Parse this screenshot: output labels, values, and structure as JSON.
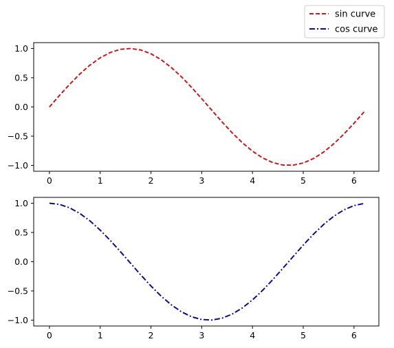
{
  "chart_data": [
    {
      "type": "line",
      "title": "",
      "xlabel": "",
      "ylabel": "",
      "xlim": [
        -0.31,
        6.49
      ],
      "ylim": [
        -1.1,
        1.1
      ],
      "x_ticks": [
        0,
        1,
        2,
        3,
        4,
        5,
        6
      ],
      "x_tick_labels": [
        "0",
        "1",
        "2",
        "3",
        "4",
        "5",
        "6"
      ],
      "y_ticks": [
        1.0,
        0.5,
        0.0,
        -0.5,
        -1.0
      ],
      "y_tick_labels": [
        "1.0",
        "0.5",
        "0.0",
        "−0.5",
        "−1.0"
      ],
      "grid": false,
      "series": [
        {
          "name": "sin curve",
          "color": "#c8191d",
          "linestyle": "dashed",
          "x": [
            0,
            0.2,
            0.4,
            0.6,
            0.8,
            1.0,
            1.2,
            1.4,
            1.6,
            1.8,
            2.0,
            2.2,
            2.4,
            2.6,
            2.8,
            3.0,
            3.2,
            3.4,
            3.6,
            3.8,
            4.0,
            4.2,
            4.4,
            4.6,
            4.8,
            5.0,
            5.2,
            5.4,
            5.6,
            5.8,
            6.0,
            6.2
          ],
          "y": [
            0.0,
            0.199,
            0.389,
            0.565,
            0.717,
            0.841,
            0.932,
            0.985,
            1.0,
            0.974,
            0.909,
            0.808,
            0.675,
            0.516,
            0.335,
            0.141,
            -0.058,
            -0.256,
            -0.443,
            -0.612,
            -0.757,
            -0.872,
            -0.952,
            -0.994,
            -0.996,
            -0.959,
            -0.883,
            -0.773,
            -0.631,
            -0.465,
            -0.279,
            -0.083
          ]
        }
      ]
    },
    {
      "type": "line",
      "title": "",
      "xlabel": "",
      "ylabel": "",
      "xlim": [
        -0.31,
        6.49
      ],
      "ylim": [
        -1.1,
        1.1
      ],
      "x_ticks": [
        0,
        1,
        2,
        3,
        4,
        5,
        6
      ],
      "x_tick_labels": [
        "0",
        "1",
        "2",
        "3",
        "4",
        "5",
        "6"
      ],
      "y_ticks": [
        1.0,
        0.5,
        0.0,
        -0.5,
        -1.0
      ],
      "y_tick_labels": [
        "1.0",
        "0.5",
        "0.0",
        "−0.5",
        "−1.0"
      ],
      "grid": false,
      "series": [
        {
          "name": "cos curve",
          "color": "#0d0d8a",
          "linestyle": "dashdot",
          "x": [
            0,
            0.2,
            0.4,
            0.6,
            0.8,
            1.0,
            1.2,
            1.4,
            1.6,
            1.8,
            2.0,
            2.2,
            2.4,
            2.6,
            2.8,
            3.0,
            3.2,
            3.4,
            3.6,
            3.8,
            4.0,
            4.2,
            4.4,
            4.6,
            4.8,
            5.0,
            5.2,
            5.4,
            5.6,
            5.8,
            6.0,
            6.2
          ],
          "y": [
            1.0,
            0.98,
            0.921,
            0.825,
            0.697,
            0.54,
            0.362,
            0.17,
            -0.029,
            -0.227,
            -0.416,
            -0.589,
            -0.737,
            -0.857,
            -0.942,
            -0.99,
            -0.998,
            -0.967,
            -0.897,
            -0.791,
            -0.654,
            -0.49,
            -0.307,
            -0.112,
            0.087,
            0.284,
            0.469,
            0.635,
            0.776,
            0.886,
            0.96,
            0.997
          ]
        }
      ]
    }
  ],
  "legend": {
    "placement": "top-right",
    "entries": [
      {
        "label": "sin curve",
        "color": "#c8191d",
        "linestyle": "dashed"
      },
      {
        "label": "cos curve",
        "color": "#0d0d8a",
        "linestyle": "dashdot"
      }
    ]
  }
}
